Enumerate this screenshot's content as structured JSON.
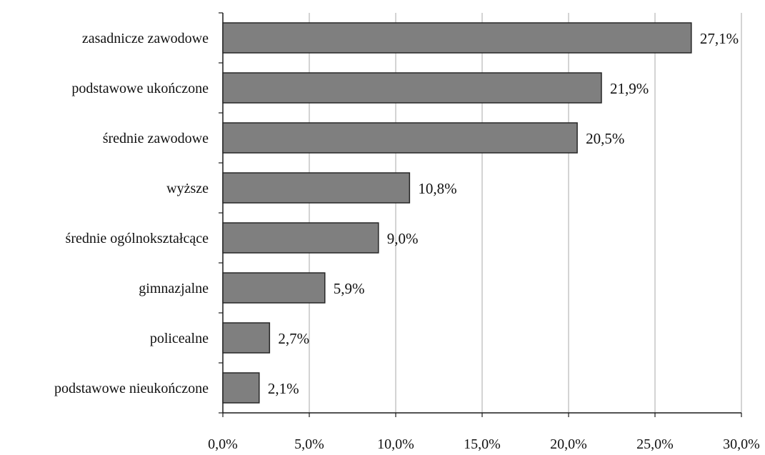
{
  "chart_data": {
    "type": "bar",
    "orientation": "horizontal",
    "categories": [
      "zasadnicze zawodowe",
      "podstawowe ukończone",
      "średnie zawodowe",
      "wyższe",
      "średnie ogólnokształcące",
      "gimnazjalne",
      "policealne",
      "podstawowe nieukończone"
    ],
    "values": [
      27.1,
      21.9,
      20.5,
      10.8,
      9.0,
      5.9,
      2.7,
      2.1
    ],
    "value_labels": [
      "27,1%",
      "21,9%",
      "20,5%",
      "10,8%",
      "9,0%",
      "5,9%",
      "2,7%",
      "2,1%"
    ],
    "x_ticks": [
      "0,0%",
      "5,0%",
      "10,0%",
      "15,0%",
      "20,0%",
      "25,0%",
      "30,0%"
    ],
    "xlim": [
      0,
      30
    ],
    "title": "",
    "xlabel": "",
    "ylabel": "",
    "grid": "vertical",
    "legend": "none",
    "colors": {
      "bar_fill": "#7f7f7f",
      "bar_stroke": "#262626",
      "axis": "#1a1a1a",
      "grid": "#b8b8b8"
    }
  }
}
